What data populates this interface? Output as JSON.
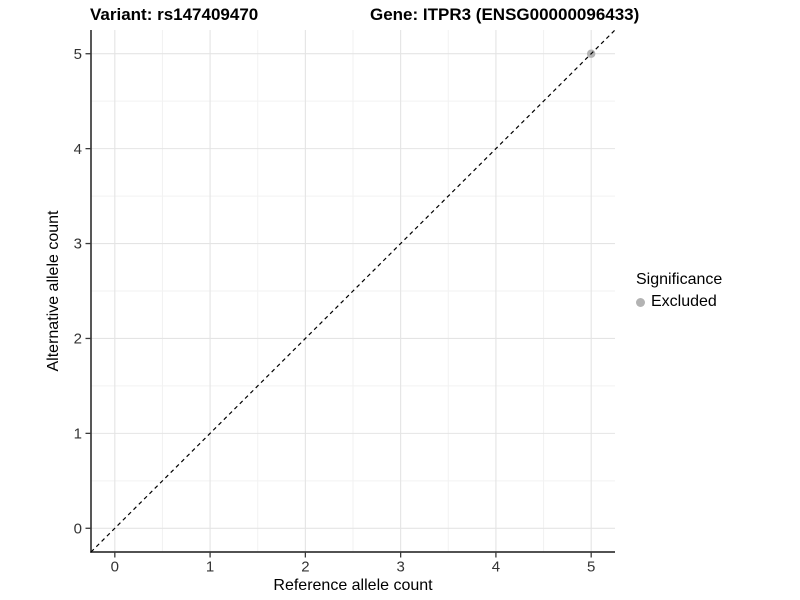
{
  "header": {
    "title_left": "Variant: rs147409470",
    "title_right": "Gene: ITPR3 (ENSG00000096433)"
  },
  "chart_data": {
    "type": "scatter",
    "xlabel": "Reference allele count",
    "ylabel": "Alternative allele count",
    "xlim": [
      -0.25,
      5.25
    ],
    "ylim": [
      -0.25,
      5.25
    ],
    "x_ticks": [
      0,
      1,
      2,
      3,
      4,
      5
    ],
    "y_ticks": [
      0,
      1,
      2,
      3,
      4,
      5
    ],
    "x_minor_ticks": [
      0.5,
      1.5,
      2.5,
      3.5,
      4.5
    ],
    "y_minor_ticks": [
      0.5,
      1.5,
      2.5,
      3.5,
      4.5
    ],
    "grid": true,
    "series": [
      {
        "name": "Excluded",
        "color": "#B3B3B3",
        "points": [
          {
            "x": 5,
            "y": 5
          }
        ]
      }
    ],
    "reference_line": {
      "type": "identity",
      "style": "dashed",
      "color": "#000000",
      "from": [
        -0.25,
        -0.25
      ],
      "to": [
        5.25,
        5.25
      ]
    },
    "style_colors": {
      "axis_line": "#3A3A3A",
      "tick_mark": "#3A3A3A",
      "tick_label": "#333333",
      "grid_major": "#E4E4E4",
      "grid_minor": "#F2F2F2",
      "background": "#FFFFFF"
    }
  },
  "legend": {
    "title": "Significance",
    "items": [
      {
        "label": "Excluded",
        "color": "#B3B3B3"
      }
    ]
  }
}
